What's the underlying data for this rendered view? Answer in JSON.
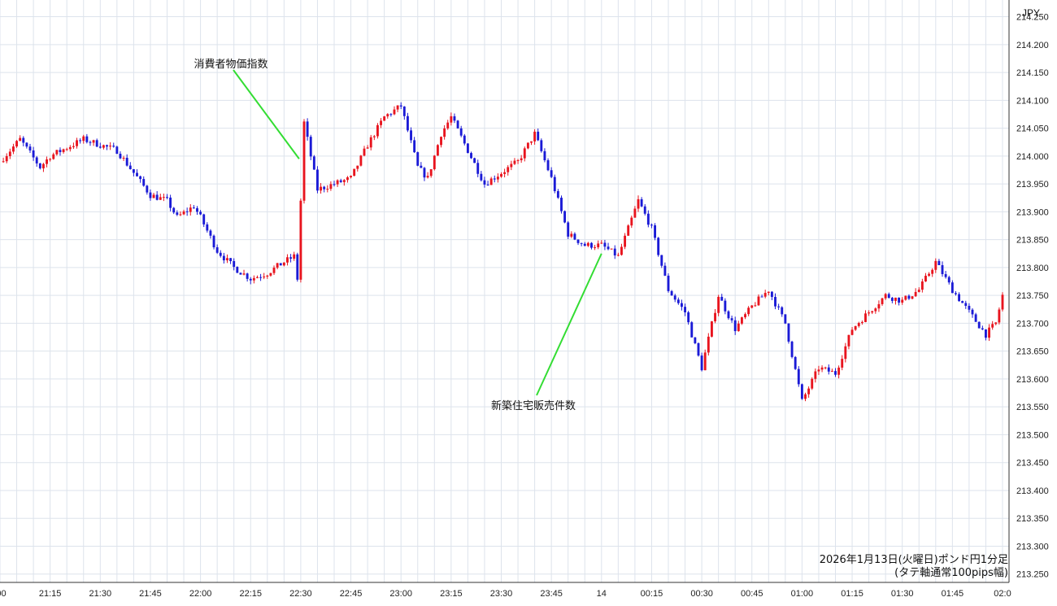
{
  "chart_data": {
    "type": "candlestick",
    "currency_label": "JPY",
    "caption_line1": "2026年1月13日(火曜日)ポンド円1分足",
    "caption_line2": "(タテ軸通常100pips幅)",
    "y_ticks": [
      "214.250",
      "214.200",
      "214.150",
      "214.100",
      "214.050",
      "214.000",
      "213.950",
      "213.900",
      "213.850",
      "213.800",
      "213.750",
      "213.700",
      "213.650",
      "213.600",
      "213.550",
      "213.500",
      "213.450",
      "213.400",
      "213.350",
      "213.300",
      "213.250"
    ],
    "y_range": [
      213.235,
      214.28
    ],
    "x_ticks": [
      ":00",
      "21:15",
      "21:30",
      "21:45",
      "22:00",
      "22:15",
      "22:30",
      "22:45",
      "23:00",
      "23:15",
      "23:30",
      "23:45",
      "14",
      "00:15",
      "00:30",
      "00:45",
      "01:00",
      "01:15",
      "01:30",
      "01:45",
      "02:0"
    ],
    "time_range": [
      "21:00",
      "02:00"
    ],
    "colors": {
      "up": "#e8141e",
      "down": "#1a1ad6",
      "annotation_line": "#33dd33",
      "grid": "#dde3ec"
    },
    "annotations": [
      {
        "label": "消費者物価指数",
        "time": "22:30",
        "price": 213.995
      },
      {
        "label": "新築住宅販売件数",
        "time": "00:00",
        "price": 213.825
      }
    ],
    "price_path": [
      {
        "time": "21:00",
        "price": 213.99
      },
      {
        "time": "21:06",
        "price": 214.03
      },
      {
        "time": "21:12",
        "price": 213.98
      },
      {
        "time": "21:15",
        "price": 214.0
      },
      {
        "time": "21:25",
        "price": 214.03
      },
      {
        "time": "21:35",
        "price": 214.01
      },
      {
        "time": "21:40",
        "price": 213.97
      },
      {
        "time": "21:45",
        "price": 213.93
      },
      {
        "time": "21:50",
        "price": 213.92
      },
      {
        "time": "21:53",
        "price": 213.89
      },
      {
        "time": "21:58",
        "price": 213.91
      },
      {
        "time": "22:00",
        "price": 213.89
      },
      {
        "time": "22:05",
        "price": 213.83
      },
      {
        "time": "22:10",
        "price": 213.8
      },
      {
        "time": "22:15",
        "price": 213.78
      },
      {
        "time": "22:20",
        "price": 213.79
      },
      {
        "time": "22:25",
        "price": 213.81
      },
      {
        "time": "22:28",
        "price": 213.82
      },
      {
        "time": "22:29",
        "price": 213.78
      },
      {
        "time": "22:31",
        "price": 214.06
      },
      {
        "time": "22:35",
        "price": 213.94
      },
      {
        "time": "22:40",
        "price": 213.95
      },
      {
        "time": "22:45",
        "price": 213.96
      },
      {
        "time": "22:50",
        "price": 214.02
      },
      {
        "time": "22:55",
        "price": 214.07
      },
      {
        "time": "23:00",
        "price": 214.09
      },
      {
        "time": "23:05",
        "price": 213.98
      },
      {
        "time": "23:08",
        "price": 213.96
      },
      {
        "time": "23:12",
        "price": 214.04
      },
      {
        "time": "23:15",
        "price": 214.07
      },
      {
        "time": "23:20",
        "price": 214.01
      },
      {
        "time": "23:25",
        "price": 213.95
      },
      {
        "time": "23:30",
        "price": 213.97
      },
      {
        "time": "23:35",
        "price": 213.99
      },
      {
        "time": "23:40",
        "price": 214.04
      },
      {
        "time": "23:45",
        "price": 213.96
      },
      {
        "time": "23:50",
        "price": 213.86
      },
      {
        "time": "23:55",
        "price": 213.84
      },
      {
        "time": "00:00",
        "price": 213.84
      },
      {
        "time": "00:05",
        "price": 213.82
      },
      {
        "time": "00:08",
        "price": 213.87
      },
      {
        "time": "00:11",
        "price": 213.92
      },
      {
        "time": "00:15",
        "price": 213.87
      },
      {
        "time": "00:20",
        "price": 213.76
      },
      {
        "time": "00:25",
        "price": 213.72
      },
      {
        "time": "00:30",
        "price": 213.62
      },
      {
        "time": "00:35",
        "price": 213.75
      },
      {
        "time": "00:40",
        "price": 213.69
      },
      {
        "time": "00:45",
        "price": 213.73
      },
      {
        "time": "00:50",
        "price": 213.76
      },
      {
        "time": "00:55",
        "price": 213.7
      },
      {
        "time": "01:00",
        "price": 213.56
      },
      {
        "time": "01:05",
        "price": 213.62
      },
      {
        "time": "01:10",
        "price": 213.61
      },
      {
        "time": "01:15",
        "price": 213.69
      },
      {
        "time": "01:20",
        "price": 213.72
      },
      {
        "time": "01:25",
        "price": 213.75
      },
      {
        "time": "01:30",
        "price": 213.74
      },
      {
        "time": "01:35",
        "price": 213.76
      },
      {
        "time": "01:40",
        "price": 213.81
      },
      {
        "time": "01:45",
        "price": 213.76
      },
      {
        "time": "01:50",
        "price": 213.72
      },
      {
        "time": "01:55",
        "price": 213.68
      },
      {
        "time": "01:58",
        "price": 213.7
      },
      {
        "time": "02:00",
        "price": 213.75
      }
    ]
  }
}
